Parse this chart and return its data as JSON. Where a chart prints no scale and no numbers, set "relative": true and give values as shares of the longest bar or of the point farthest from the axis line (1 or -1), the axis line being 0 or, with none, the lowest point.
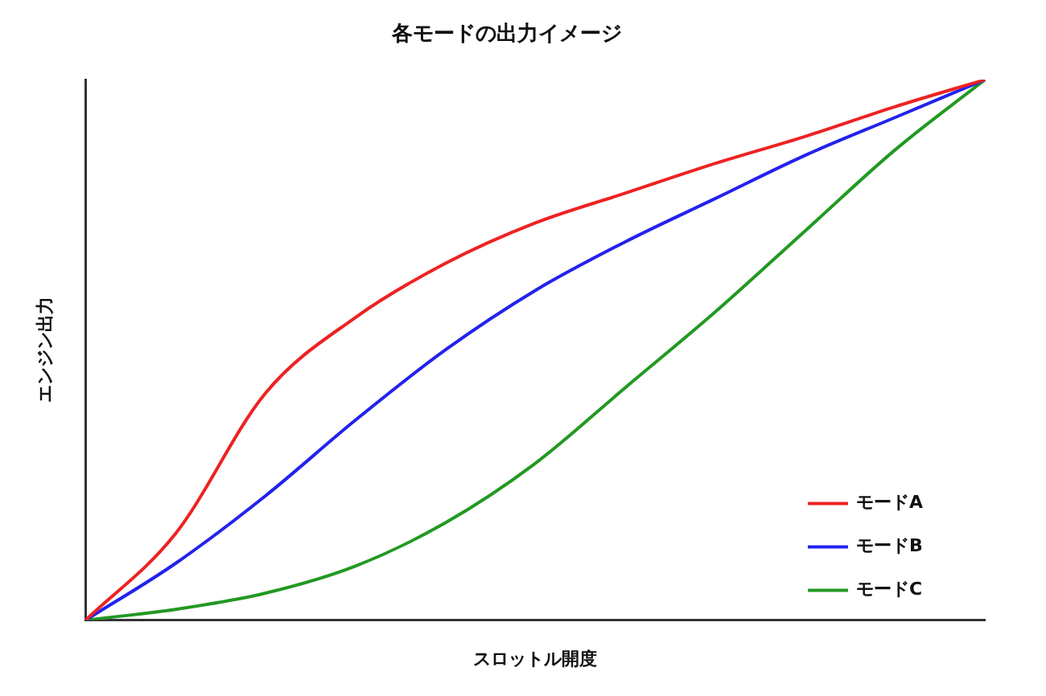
{
  "chart_data": {
    "type": "line",
    "title": "各モードの出力イメージ",
    "xlabel": "スロットル開度",
    "ylabel": "エンジン出力",
    "relative": true,
    "categories": [
      null,
      null,
      null,
      null,
      null,
      null,
      null,
      null,
      null,
      null,
      null
    ],
    "legend": "bottom right",
    "grid": false,
    "marker": "none",
    "line_style": "solid",
    "series": [
      {
        "name": "モードA",
        "color": "#ee2222",
        "values": [
          0,
          0.16,
          0.42,
          0.56,
          0.66,
          0.735,
          0.79,
          0.845,
          0.895,
          0.95,
          1
        ]
      },
      {
        "name": "モードB",
        "color": "#2222ee",
        "values": [
          0,
          0.105,
          0.23,
          0.37,
          0.5,
          0.61,
          0.7,
          0.78,
          0.86,
          0.93,
          1
        ]
      },
      {
        "name": "モードC",
        "color": "#229922",
        "values": [
          0,
          0.02,
          0.05,
          0.1,
          0.18,
          0.29,
          0.43,
          0.57,
          0.72,
          0.87,
          1
        ]
      }
    ]
  }
}
